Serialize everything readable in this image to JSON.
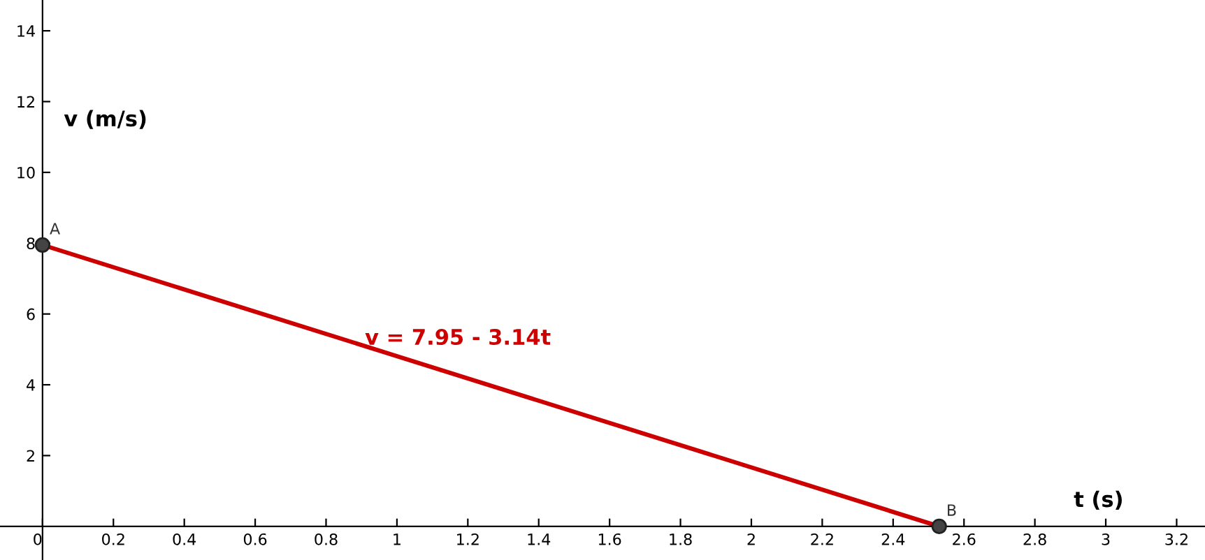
{
  "chart_data": {
    "type": "line",
    "xlabel": "t (s)",
    "ylabel": "v (m/s)",
    "x": [
      0,
      2.53
    ],
    "series": [
      {
        "color": "#cc0000",
        "values": [
          7.95,
          0
        ]
      }
    ],
    "marker": "circle",
    "line_style": "solid",
    "xlim": [
      -0.12,
      3.28
    ],
    "ylim": [
      -0.95,
      14.87
    ],
    "xticks": [
      0,
      0.2,
      0.4,
      0.6,
      0.8,
      1,
      1.2,
      1.4,
      1.6,
      1.8,
      2,
      2.2,
      2.4,
      2.6,
      2.8,
      3,
      3.2
    ],
    "yticks": [
      2,
      4,
      6,
      8,
      10,
      12,
      14
    ],
    "grid": false,
    "annotations": [
      {
        "text": "A",
        "x": 0,
        "y": 7.95
      },
      {
        "text": "B",
        "x": 2.53,
        "y": 0
      },
      "v = 7.95 - 3.14t"
    ]
  }
}
